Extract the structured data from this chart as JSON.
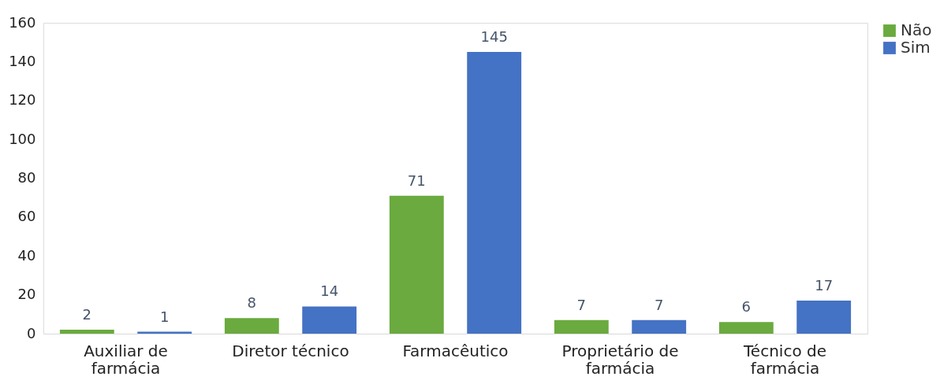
{
  "chart_data": {
    "type": "bar",
    "categories": [
      "Auxiliar de farmácia",
      "Diretor técnico",
      "Farmacêutico",
      "Proprietário de farmácia",
      "Técnico de farmácia"
    ],
    "series": [
      {
        "name": "Não",
        "color": "#6aaa3e",
        "values": [
          2,
          8,
          71,
          7,
          6
        ]
      },
      {
        "name": "Sim",
        "color": "#4472c4",
        "values": [
          1,
          14,
          145,
          7,
          17
        ]
      }
    ],
    "ylim": [
      0,
      160
    ],
    "yticks": [
      0,
      20,
      40,
      60,
      80,
      100,
      120,
      140,
      160
    ],
    "grid": false,
    "legend": "right",
    "data_labels": true
  }
}
